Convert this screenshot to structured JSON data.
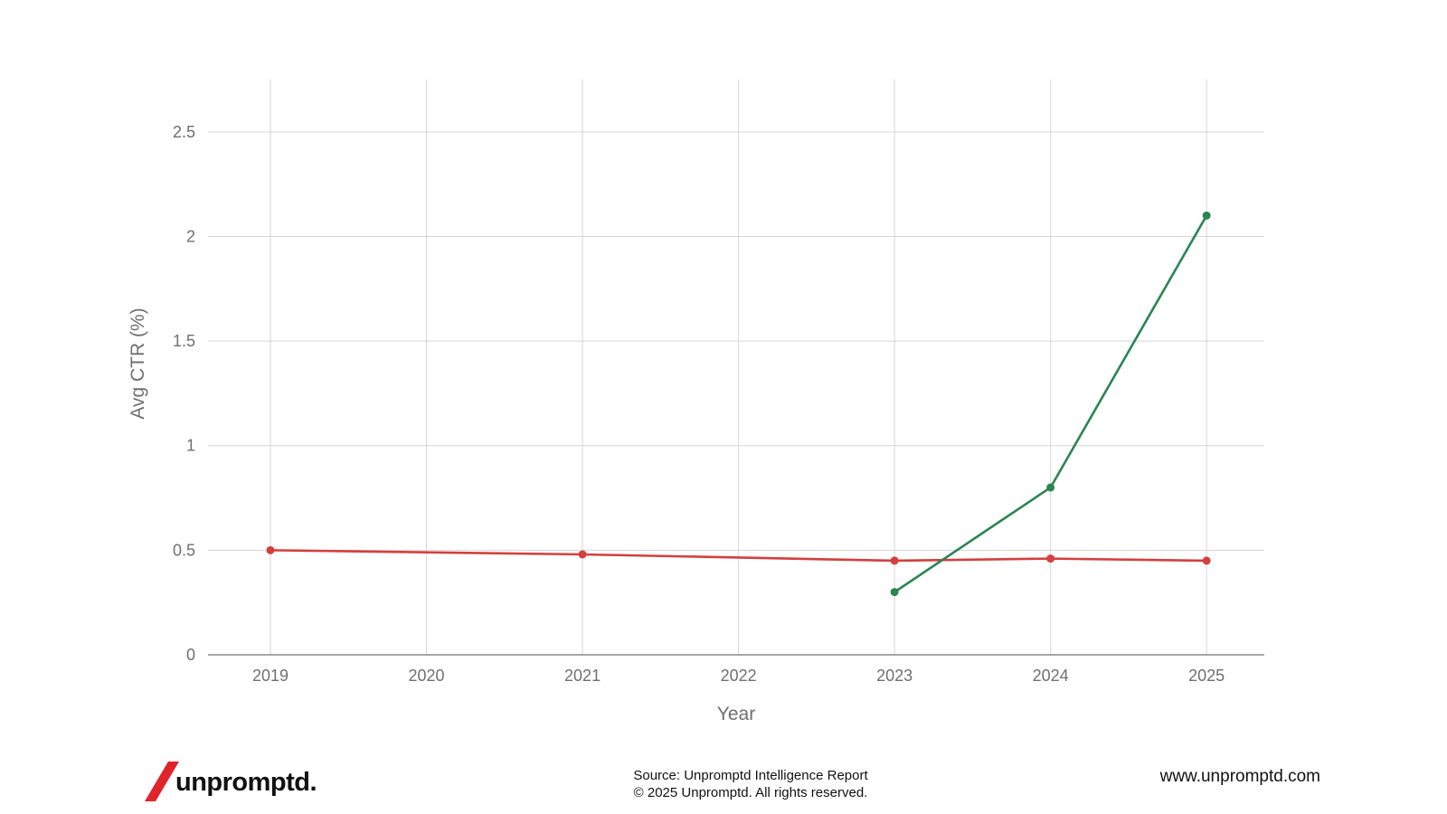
{
  "chart_data": {
    "type": "line",
    "title": "",
    "xlabel": "Year",
    "ylabel": "Avg CTR (%)",
    "x": [
      2019,
      2020,
      2021,
      2022,
      2023,
      2024,
      2025
    ],
    "x_ticks": [
      "2019",
      "2020",
      "2021",
      "2022",
      "2023",
      "2024",
      "2025"
    ],
    "y_ticks": [
      "0",
      "0.5",
      "1",
      "1.5",
      "2",
      "2.5"
    ],
    "y_tick_values": [
      0,
      0.5,
      1,
      1.5,
      2,
      2.5
    ],
    "ylim": [
      0,
      2.75
    ],
    "xlim": [
      2018.6,
      2025.37
    ],
    "grid": true,
    "legend": "none",
    "series": [
      {
        "color": "#d43f3f",
        "points": [
          {
            "x": 2019,
            "y": 0.5
          },
          {
            "x": 2021,
            "y": 0.48
          },
          {
            "x": 2023,
            "y": 0.45
          },
          {
            "x": 2024,
            "y": 0.46
          },
          {
            "x": 2025,
            "y": 0.45
          }
        ]
      },
      {
        "color": "#2a8553",
        "points": [
          {
            "x": 2023,
            "y": 0.3
          },
          {
            "x": 2024,
            "y": 0.8
          },
          {
            "x": 2025,
            "y": 2.1
          }
        ]
      }
    ]
  },
  "footer": {
    "logo_text": "unpromptd.",
    "logo_accent_color": "#e0242b",
    "source_line1": "Source: Unpromptd Intelligence Report",
    "source_line2": "© 2025 Unpromptd. All rights reserved.",
    "website": "www.unpromptd.com"
  }
}
